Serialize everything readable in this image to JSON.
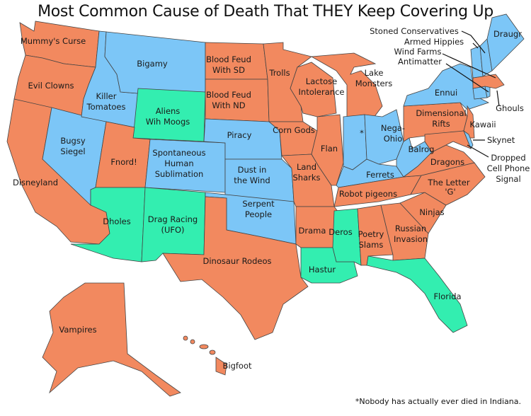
{
  "title": "Most Common Cause of Death That THEY Keep Covering Up",
  "footnote": "*Nobody has actually ever died in Indiana.",
  "colors": {
    "orange": "#f2895f",
    "blue": "#7cc6f7",
    "green": "#33eeb0"
  },
  "states": {
    "WA": "Mummy's Curse",
    "OR": "Evil Clowns",
    "CA": "Disneyland",
    "NV": [
      "Bugsy",
      "Siegel"
    ],
    "ID": [
      "Killer",
      "Tomatoes"
    ],
    "MT": "Bigamy",
    "WY": [
      "Aliens",
      "Wih Moogs"
    ],
    "UT": "Fnord!",
    "CO": [
      "Spontaneous",
      "Human",
      "Sublimation"
    ],
    "AZ": "Dholes",
    "NM": [
      "Drag Racing",
      "(UFO)"
    ],
    "ND": [
      "Blood Feud",
      "With SD"
    ],
    "SD": [
      "Blood Feud",
      "With ND"
    ],
    "NE": "Piracy",
    "KS": [
      "Dust in",
      "the Wind"
    ],
    "OK": [
      "Serpent",
      "People"
    ],
    "TX": "Dinosaur Rodeos",
    "MN": "Trolls",
    "IA": "Corn Gods",
    "MO": [
      "Land",
      "Sharks"
    ],
    "AR": "Drama",
    "LA": "Hastur",
    "WI": [
      "Lactose",
      "Intolerance"
    ],
    "IL": "Flan",
    "MI": [
      "Lake",
      "Monsters"
    ],
    "IN": "*",
    "OH": [
      "Nega-",
      "Ohio"
    ],
    "KY": "Ferrets",
    "TN": "Robot pigeons",
    "MS": "Deros",
    "AL": [
      "Poetry",
      "Slams"
    ],
    "GA": [
      "Russian",
      "Invasion"
    ],
    "SC": "Ninjas",
    "NC": [
      "The Letter",
      "'G'"
    ],
    "FL": "Florida",
    "VA": "Dragons",
    "WV": "Balrog",
    "PA": [
      "Dimensional",
      "Rifts"
    ],
    "NY": "Ennui",
    "NJ": "Kawaii",
    "ME": "Draugr",
    "NH": "Stoned Conservatives",
    "VT": "Armed Hippies",
    "MA": "Wind Farms",
    "CT": "Antimatter",
    "RI": "Ghouls",
    "DE": "Skynet",
    "MD": [
      "Dropped",
      "Cell Phone",
      "Signal"
    ],
    "AK": "Vampires",
    "HI": "Bigfoot"
  }
}
